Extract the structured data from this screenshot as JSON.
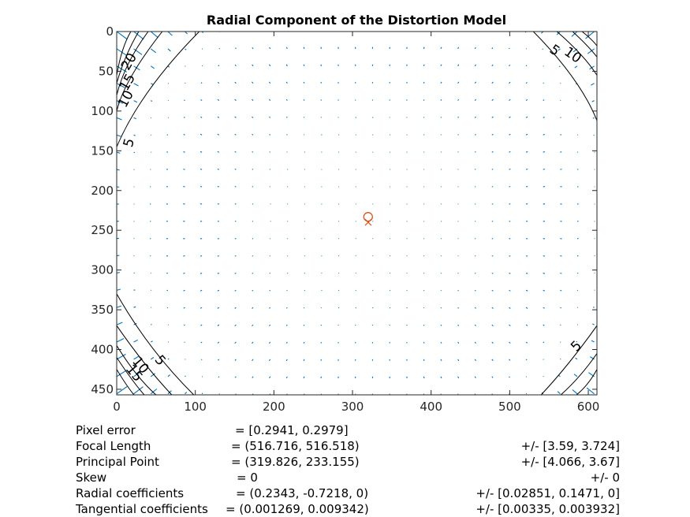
{
  "chart_data": {
    "type": "quiver",
    "title": "Radial Component of the Distortion Model",
    "xlim": [
      0,
      611
    ],
    "ylim": [
      0,
      457
    ],
    "y_reversed": true,
    "xticks": [
      "0",
      "100",
      "200",
      "300",
      "400",
      "500",
      "600"
    ],
    "yticks": [
      "0",
      "50",
      "100",
      "150",
      "200",
      "250",
      "300",
      "350",
      "400",
      "450"
    ],
    "principal_point": [
      319.826,
      233.155
    ],
    "image_center": [
      320,
      240
    ],
    "contour_labels": [
      {
        "text": "20",
        "x": 18,
        "y": 38
      },
      {
        "text": "15",
        "x": 18,
        "y": 70
      },
      {
        "text": "10",
        "x": 18,
        "y": 82
      },
      {
        "text": "5",
        "x": 18,
        "y": 140
      },
      {
        "text": "5",
        "x": 583,
        "y": 28
      },
      {
        "text": "10",
        "x": 583,
        "y": 28
      },
      {
        "text": "5",
        "x": 583,
        "y": 397
      },
      {
        "text": "5",
        "x": 55,
        "y": 413
      },
      {
        "text": "10",
        "x": 35,
        "y": 420
      },
      {
        "text": "15",
        "x": 35,
        "y": 420
      }
    ],
    "arrow_color": "#0072bd",
    "marker_color": "#d95319"
  },
  "stats": {
    "rows": [
      {
        "label": "Pixel error",
        "value": "= [0.2941, 0.2979]",
        "err": ""
      },
      {
        "label": "Focal Length",
        "value": "= (516.716, 516.518)",
        "err": "+/- [3.59, 3.724]"
      },
      {
        "label": "Principal Point",
        "value": "= (319.826, 233.155)",
        "err": "+/- [4.066, 3.67]"
      },
      {
        "label": "Skew",
        "value": "= 0",
        "err": "+/- 0"
      },
      {
        "label": "Radial coefficients",
        "value": "= (0.2343, -0.7218, 0)",
        "err": "+/- [0.02851, 0.1471, 0]"
      },
      {
        "label": "Tangential coefficients",
        "value": "= (0.001269, 0.009342)",
        "err": "+/- [0.00335, 0.003932]"
      }
    ]
  }
}
